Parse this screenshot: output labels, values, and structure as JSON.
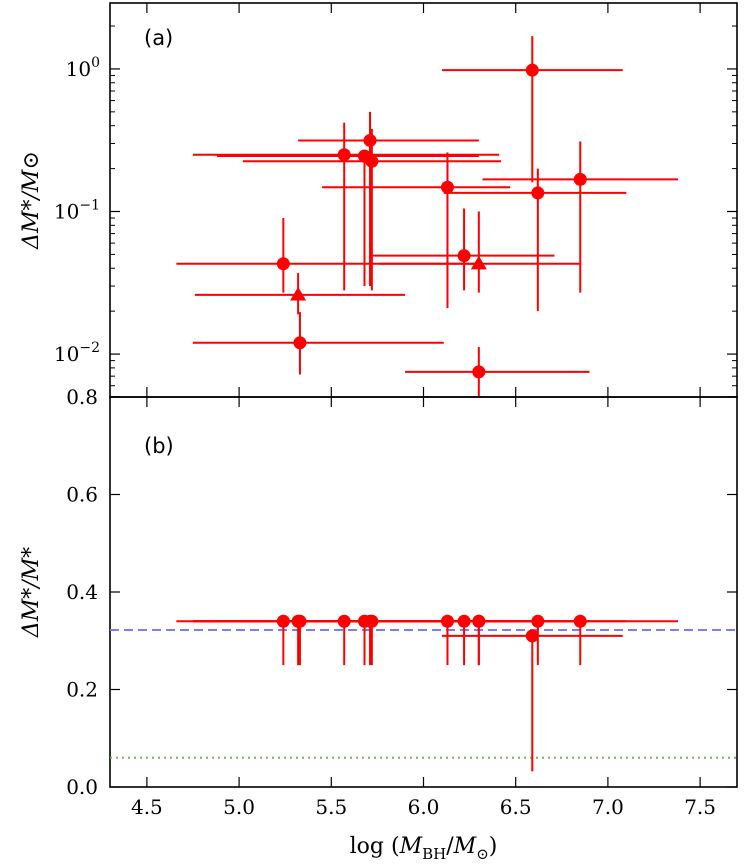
{
  "chart_data": [
    {
      "panel": "a",
      "type": "scatter",
      "panel_label": "(a)",
      "xlabel_math": {
        "prefix": "log",
        "base": "M",
        "sub": "BH",
        "den_base": "M",
        "den_sub": "⊙"
      },
      "ylabel": "ΔM*/M⊙",
      "yscale": "log",
      "ylim": [
        0.005,
        2.9
      ],
      "xlim": [
        4.3,
        7.7
      ],
      "yticks": [
        {
          "value": 1,
          "mantissa": "10",
          "exp": "0"
        },
        {
          "value": 0.1,
          "mantissa": "10",
          "exp": "−1"
        },
        {
          "value": 0.01,
          "mantissa": "10",
          "exp": "−2"
        }
      ],
      "color": "#ff0000",
      "points": [
        {
          "x": 5.24,
          "xerr": [
            0.58,
            1.06
          ],
          "y": 0.043,
          "yerr": [
            0.016,
            0.047
          ],
          "marker": "circle"
        },
        {
          "x": 5.32,
          "xerr": [
            0.56,
            0.58
          ],
          "y": 0.026,
          "yerr": [
            0.007,
            0.011
          ],
          "marker": "triangle"
        },
        {
          "x": 5.33,
          "xerr": [
            0.58,
            0.78
          ],
          "y": 0.012,
          "yerr": [
            0.0048,
            0.0077
          ],
          "marker": "circle"
        },
        {
          "x": 5.57,
          "xerr": [
            0.82,
            0.84
          ],
          "y": 0.25,
          "yerr": [
            0.222,
            0.17
          ],
          "marker": "circle"
        },
        {
          "x": 5.68,
          "xerr": [
            0.8,
            0.62
          ],
          "y": 0.245,
          "yerr": [
            0.215,
            0.015
          ],
          "marker": "circle"
        },
        {
          "x": 5.71,
          "xerr": [
            0.39,
            0.59
          ],
          "y": 0.315,
          "yerr": [
            0.285,
            0.185
          ],
          "marker": "circle"
        },
        {
          "x": 5.72,
          "xerr": [
            0.7,
            0.7
          ],
          "y": 0.225,
          "yerr": [
            0.197,
            0.155
          ],
          "marker": "circle"
        },
        {
          "x": 6.13,
          "xerr": [
            0.68,
            0.34
          ],
          "y": 0.148,
          "yerr": [
            0.127,
            0.112
          ],
          "marker": "circle"
        },
        {
          "x": 6.22,
          "xerr": [
            0.51,
            0.49
          ],
          "y": 0.049,
          "yerr": [
            0.021,
            0.056
          ],
          "marker": "circle"
        },
        {
          "x": 6.3,
          "xerr": [
            0.54,
            0.55
          ],
          "y": 0.043,
          "yerr": [
            0.016,
            0.057
          ],
          "marker": "triangle"
        },
        {
          "x": 6.3,
          "xerr": [
            0.4,
            0.6
          ],
          "y": 0.0075,
          "yerr": [
            0.0025,
            0.0037
          ],
          "marker": "circle"
        },
        {
          "x": 6.59,
          "xerr": [
            0.49,
            0.49
          ],
          "y": 0.98,
          "yerr": [
            0.82,
            0.72
          ],
          "marker": "circle"
        },
        {
          "x": 6.62,
          "xerr": [
            0.51,
            0.48
          ],
          "y": 0.135,
          "yerr": [
            0.115,
            0.065
          ],
          "marker": "circle"
        },
        {
          "x": 6.85,
          "xerr": [
            0.53,
            0.53
          ],
          "y": 0.168,
          "yerr": [
            0.141,
            0.142
          ],
          "marker": "circle"
        }
      ]
    },
    {
      "panel": "b",
      "type": "scatter",
      "panel_label": "(b)",
      "xlabel_math": {
        "prefix": "log",
        "base": "M",
        "sub": "BH",
        "den_base": "M",
        "den_sub": "⊙"
      },
      "ylabel": "ΔM*/M*",
      "ylim": [
        0.0,
        0.8
      ],
      "xlim": [
        4.3,
        7.7
      ],
      "yticks": [
        {
          "value": 0.0,
          "label": "0.0"
        },
        {
          "value": 0.2,
          "label": "0.2"
        },
        {
          "value": 0.4,
          "label": "0.4"
        },
        {
          "value": 0.6,
          "label": "0.6"
        },
        {
          "value": 0.8,
          "label": "0.8"
        }
      ],
      "xticks": [
        {
          "value": 4.5,
          "label": "4.5"
        },
        {
          "value": 5.0,
          "label": "5.0"
        },
        {
          "value": 5.5,
          "label": "5.5"
        },
        {
          "value": 6.0,
          "label": "6.0"
        },
        {
          "value": 6.5,
          "label": "6.5"
        },
        {
          "value": 7.0,
          "label": "7.0"
        },
        {
          "value": 7.5,
          "label": "7.5"
        }
      ],
      "color": "#ff0000",
      "reference_lines": [
        {
          "y": 0.322,
          "style": "dashed",
          "color": "#7b7bff"
        },
        {
          "y": 0.06,
          "style": "dotted",
          "color": "#66bb55"
        }
      ],
      "points": [
        {
          "x": 5.24,
          "xerr": [
            0.58,
            1.06
          ],
          "y": 0.34,
          "yerr": [
            0.09,
            0.0
          ]
        },
        {
          "x": 5.32,
          "xerr": [
            0.56,
            0.58
          ],
          "y": 0.34,
          "yerr": [
            0.09,
            0.0
          ]
        },
        {
          "x": 5.33,
          "xerr": [
            0.58,
            0.78
          ],
          "y": 0.34,
          "yerr": [
            0.09,
            0.0
          ]
        },
        {
          "x": 5.57,
          "xerr": [
            0.82,
            0.84
          ],
          "y": 0.34,
          "yerr": [
            0.09,
            0.0
          ]
        },
        {
          "x": 5.68,
          "xerr": [
            0.8,
            0.62
          ],
          "y": 0.34,
          "yerr": [
            0.09,
            0.0
          ]
        },
        {
          "x": 5.71,
          "xerr": [
            0.39,
            0.59
          ],
          "y": 0.34,
          "yerr": [
            0.09,
            0.0
          ]
        },
        {
          "x": 5.72,
          "xerr": [
            0.7,
            0.7
          ],
          "y": 0.34,
          "yerr": [
            0.09,
            0.0
          ]
        },
        {
          "x": 6.13,
          "xerr": [
            0.68,
            0.34
          ],
          "y": 0.34,
          "yerr": [
            0.09,
            0.0
          ]
        },
        {
          "x": 6.22,
          "xerr": [
            0.51,
            0.49
          ],
          "y": 0.34,
          "yerr": [
            0.09,
            0.0
          ]
        },
        {
          "x": 6.3,
          "xerr": [
            0.54,
            0.55
          ],
          "y": 0.34,
          "yerr": [
            0.09,
            0.0
          ]
        },
        {
          "x": 6.3,
          "xerr": [
            0.4,
            0.6
          ],
          "y": 0.34,
          "yerr": [
            0.09,
            0.0
          ]
        },
        {
          "x": 6.59,
          "xerr": [
            0.49,
            0.49
          ],
          "y": 0.31,
          "yerr": [
            0.278,
            0.0
          ]
        },
        {
          "x": 6.62,
          "xerr": [
            0.51,
            0.48
          ],
          "y": 0.34,
          "yerr": [
            0.09,
            0.0
          ]
        },
        {
          "x": 6.85,
          "xerr": [
            0.53,
            0.53
          ],
          "y": 0.34,
          "yerr": [
            0.09,
            0.0
          ]
        }
      ]
    }
  ]
}
